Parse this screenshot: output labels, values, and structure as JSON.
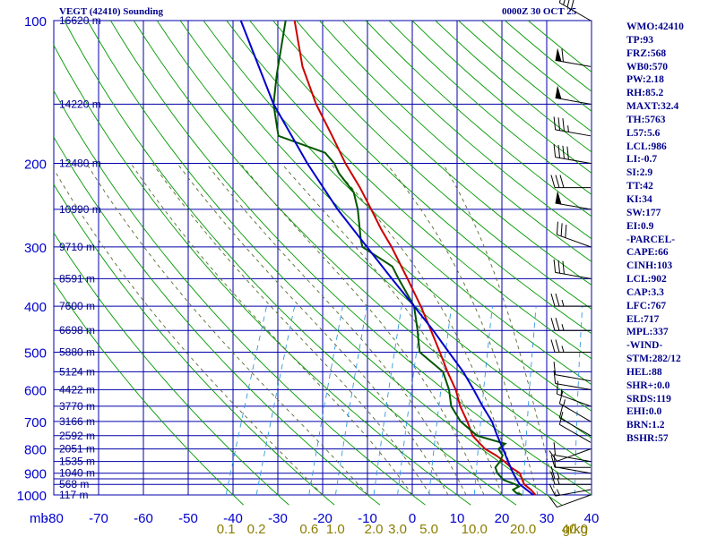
{
  "title": {
    "left": "VEGT (42410) Sounding",
    "right": "0000Z 30 OCT 25"
  },
  "stats": [
    {
      "label": "WMO",
      "value": "42410"
    },
    {
      "label": "TP",
      "value": "93"
    },
    {
      "label": "FRZ",
      "value": "568"
    },
    {
      "label": "WB0",
      "value": "570"
    },
    {
      "label": "PW",
      "value": "2.18"
    },
    {
      "label": "RH",
      "value": "85.2"
    },
    {
      "label": "MAXT",
      "value": "32.4"
    },
    {
      "label": "TH",
      "value": "5763"
    },
    {
      "label": "L57",
      "value": "5.6"
    },
    {
      "label": "LCL",
      "value": "986"
    },
    {
      "label": "LI",
      "value": "-0.7"
    },
    {
      "label": "SI",
      "value": "2.9"
    },
    {
      "label": "TT",
      "value": "42"
    },
    {
      "label": "KI",
      "value": "34"
    },
    {
      "label": "SW",
      "value": "177"
    },
    {
      "label": "EI",
      "value": "0.9"
    },
    {
      "label": "",
      "value": "-PARCEL-"
    },
    {
      "label": "CAPE",
      "value": "66"
    },
    {
      "label": "CINH",
      "value": "103"
    },
    {
      "label": "LCL",
      "value": "902"
    },
    {
      "label": "CAP",
      "value": "3.3"
    },
    {
      "label": "LFC",
      "value": "767"
    },
    {
      "label": "EL",
      "value": "717"
    },
    {
      "label": "MPL",
      "value": "337"
    },
    {
      "label": "",
      "value": "-WIND-"
    },
    {
      "label": "STM",
      "value": "282/12"
    },
    {
      "label": "HEL",
      "value": "88"
    },
    {
      "label": "SHR+",
      "value": "0.0"
    },
    {
      "label": "SRDS",
      "value": "119"
    },
    {
      "label": "EHI",
      "value": "0.0"
    },
    {
      "label": "BRN",
      "value": "1.2"
    },
    {
      "label": "BSHR",
      "value": "57"
    }
  ],
  "colors": {
    "grid": "#0000aa",
    "dry_adiabat": "#009900",
    "moist_adiabat": "#556b2f",
    "mixing_ratio": "#3399dd",
    "temperature": "#cc0000",
    "dewpoint": "#005500",
    "parcel": "#0000cc",
    "labels": "#0000cc",
    "mixing_labels": "#8b7d00"
  },
  "chart_data": {
    "type": "skew-t log-p",
    "pressure_unit_label": "mb",
    "ylim": [
      1000,
      100
    ],
    "xlim": [
      -80,
      40
    ],
    "pressure_ticks": [
      100,
      200,
      300,
      400,
      500,
      600,
      700,
      800,
      900,
      1000
    ],
    "temperature_ticks": [
      -80,
      -70,
      -60,
      -50,
      -40,
      -30,
      -20,
      -10,
      0,
      10,
      20,
      30,
      40
    ],
    "extra_pressure_levels": [
      150,
      250,
      350,
      450,
      550,
      650,
      750,
      850,
      925,
      950
    ],
    "height_labels": [
      {
        "p": 100,
        "text": "16620 m"
      },
      {
        "p": 150,
        "text": "14220 m"
      },
      {
        "p": 200,
        "text": "12480 m"
      },
      {
        "p": 250,
        "text": "10990 m"
      },
      {
        "p": 300,
        "text": "9710 m"
      },
      {
        "p": 350,
        "text": "8591 m"
      },
      {
        "p": 400,
        "text": "7600 m"
      },
      {
        "p": 450,
        "text": "6698 m"
      },
      {
        "p": 500,
        "text": "5880 m"
      },
      {
        "p": 550,
        "text": "5124 m"
      },
      {
        "p": 600,
        "text": "4422 m"
      },
      {
        "p": 650,
        "text": "3770 m"
      },
      {
        "p": 700,
        "text": "3166 m"
      },
      {
        "p": 750,
        "text": "2592 m"
      },
      {
        "p": 800,
        "text": "2051 m"
      },
      {
        "p": 850,
        "text": "1535 m"
      },
      {
        "p": 900,
        "text": "1040 m"
      },
      {
        "p": 950,
        "text": "568 m"
      },
      {
        "p": 1000,
        "text": "117 m"
      }
    ],
    "mixing_ratio_labels": [
      {
        "w": 0.1,
        "text": "0.1"
      },
      {
        "w": 0.2,
        "text": "0.2"
      },
      {
        "w": 0.6,
        "text": "0.6"
      },
      {
        "w": 1.0,
        "text": "1.0"
      },
      {
        "w": 2.0,
        "text": "2.0"
      },
      {
        "w": 3.0,
        "text": "3.0"
      },
      {
        "w": 5.0,
        "text": "5.0"
      },
      {
        "w": 10.0,
        "text": "10.0"
      },
      {
        "w": 20.0,
        "text": "20.0"
      },
      {
        "w": 40.0,
        "text": "40.0"
      }
    ],
    "mixing_ratio_unit": "g/kg",
    "series": [
      {
        "name": "temperature",
        "points": [
          [
            1000,
            27.5
          ],
          [
            975,
            26.0
          ],
          [
            950,
            24.0
          ],
          [
            925,
            23.0
          ],
          [
            900,
            22.0
          ],
          [
            875,
            19.5
          ],
          [
            850,
            17.5
          ],
          [
            825,
            15.0
          ],
          [
            800,
            12.0
          ],
          [
            775,
            10.0
          ],
          [
            750,
            8.0
          ],
          [
            700,
            5.5
          ],
          [
            650,
            2.5
          ],
          [
            600,
            0.0
          ],
          [
            550,
            -3.5
          ],
          [
            500,
            -7.0
          ],
          [
            450,
            -11.0
          ],
          [
            400,
            -15.5
          ],
          [
            350,
            -21.0
          ],
          [
            300,
            -27.5
          ],
          [
            275,
            -31.5
          ],
          [
            250,
            -35.5
          ],
          [
            225,
            -40.0
          ],
          [
            200,
            -45.5
          ],
          [
            175,
            -51.0
          ],
          [
            150,
            -57.5
          ],
          [
            125,
            -64.0
          ],
          [
            100,
            -70.0
          ]
        ]
      },
      {
        "name": "dewpoint",
        "points": [
          [
            1000,
            24.5
          ],
          [
            990,
            23.0
          ],
          [
            975,
            22.0
          ],
          [
            960,
            23.0
          ],
          [
            950,
            22.0
          ],
          [
            930,
            19.0
          ],
          [
            900,
            17.0
          ],
          [
            875,
            16.0
          ],
          [
            850,
            16.5
          ],
          [
            825,
            16.5
          ],
          [
            800,
            15.0
          ],
          [
            780,
            16.0
          ],
          [
            750,
            9.0
          ],
          [
            700,
            4.0
          ],
          [
            650,
            0.5
          ],
          [
            600,
            -1.5
          ],
          [
            550,
            -4.5
          ],
          [
            500,
            -11.5
          ],
          [
            470,
            -13.0
          ],
          [
            450,
            -14.0
          ],
          [
            400,
            -17.0
          ],
          [
            350,
            -23.0
          ],
          [
            330,
            -25.5
          ],
          [
            300,
            -34.0
          ],
          [
            290,
            -35.0
          ],
          [
            250,
            -38.5
          ],
          [
            230,
            -41.0
          ],
          [
            210,
            -46.0
          ],
          [
            200,
            -48.0
          ],
          [
            190,
            -51.0
          ],
          [
            175,
            -63.0
          ],
          [
            150,
            -67.0
          ],
          [
            130,
            -69.0
          ],
          [
            100,
            -72.0
          ]
        ]
      },
      {
        "name": "parcel",
        "points": [
          [
            1000,
            27.0
          ],
          [
            950,
            23.0
          ],
          [
            900,
            20.5
          ],
          [
            850,
            18.3
          ],
          [
            800,
            16.0
          ],
          [
            750,
            13.5
          ],
          [
            700,
            11.0
          ],
          [
            650,
            7.5
          ],
          [
            600,
            4.0
          ],
          [
            550,
            0.0
          ],
          [
            500,
            -5.0
          ],
          [
            450,
            -10.5
          ],
          [
            400,
            -17.0
          ],
          [
            350,
            -24.5
          ],
          [
            300,
            -33.0
          ],
          [
            250,
            -43.0
          ],
          [
            200,
            -54.0
          ],
          [
            150,
            -67.0
          ],
          [
            100,
            -82.0
          ]
        ]
      }
    ],
    "wind_barbs": [
      {
        "p": 1000,
        "dir": 250,
        "spd": 10
      },
      {
        "p": 975,
        "dir": 260,
        "spd": 15
      },
      {
        "p": 950,
        "dir": 270,
        "spd": 15
      },
      {
        "p": 925,
        "dir": 270,
        "spd": 15
      },
      {
        "p": 900,
        "dir": 280,
        "spd": 10
      },
      {
        "p": 875,
        "dir": 270,
        "spd": 10
      },
      {
        "p": 850,
        "dir": 280,
        "spd": 10
      },
      {
        "p": 800,
        "dir": 250,
        "spd": 10
      },
      {
        "p": 775,
        "dir": 300,
        "spd": 10
      },
      {
        "p": 750,
        "dir": 300,
        "spd": 10
      },
      {
        "p": 700,
        "dir": 300,
        "spd": 15
      },
      {
        "p": 650,
        "dir": 290,
        "spd": 15
      },
      {
        "p": 600,
        "dir": 280,
        "spd": 10
      },
      {
        "p": 575,
        "dir": 280,
        "spd": 10
      },
      {
        "p": 500,
        "dir": 270,
        "spd": 25
      },
      {
        "p": 450,
        "dir": 270,
        "spd": 25
      },
      {
        "p": 400,
        "dir": 270,
        "spd": 25
      },
      {
        "p": 350,
        "dir": 280,
        "spd": 30
      },
      {
        "p": 300,
        "dir": 290,
        "spd": 30
      },
      {
        "p": 250,
        "dir": 280,
        "spd": 50
      },
      {
        "p": 225,
        "dir": 270,
        "spd": 30
      },
      {
        "p": 200,
        "dir": 280,
        "spd": 40
      },
      {
        "p": 175,
        "dir": 280,
        "spd": 35
      },
      {
        "p": 150,
        "dir": 280,
        "spd": 50
      },
      {
        "p": 125,
        "dir": 280,
        "spd": 60
      },
      {
        "p": 100,
        "dir": 300,
        "spd": 40
      }
    ]
  }
}
